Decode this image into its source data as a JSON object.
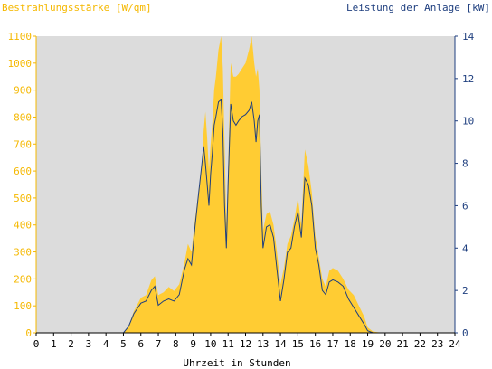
{
  "chart_data": {
    "type": "area",
    "title_left": "Bestrahlungsstärke [W/qm]",
    "title_right": "Leistung der Anlage [kW]",
    "xlabel": "Uhrzeit in Stunden",
    "xlim": [
      0,
      24
    ],
    "x_ticks": [
      "0",
      "1",
      "2",
      "3",
      "4",
      "5",
      "6",
      "7",
      "8",
      "9",
      "10",
      "11",
      "12",
      "13",
      "14",
      "15",
      "16",
      "17",
      "18",
      "19",
      "20",
      "21",
      "22",
      "23",
      "24"
    ],
    "y_left": {
      "range": [
        0,
        1100
      ],
      "ticks": [
        "0",
        "100",
        "200",
        "300",
        "400",
        "500",
        "600",
        "700",
        "800",
        "900",
        "1000",
        "1100"
      ]
    },
    "y_right": {
      "range": [
        0,
        14
      ],
      "ticks": [
        "0",
        "2",
        "4",
        "6",
        "8",
        "10",
        "12",
        "14"
      ]
    },
    "grid": false,
    "colors": {
      "plot_background": "#dcdcdc",
      "irradiance": "#ffcc33",
      "power": "#1f3f7f",
      "left_axis": "#f5b800",
      "right_axis": "#1f3f7f"
    },
    "series": [
      {
        "axis": "left",
        "x": [
          0,
          5.0,
          5.3,
          5.6,
          6.0,
          6.3,
          6.6,
          6.8,
          7.0,
          7.3,
          7.6,
          7.9,
          8.2,
          8.5,
          8.7,
          8.9,
          9.1,
          9.3,
          9.5,
          9.6,
          9.7,
          9.8,
          9.9,
          10.0,
          10.1,
          10.2,
          10.3,
          10.45,
          10.6,
          10.7,
          10.8,
          10.9,
          11.0,
          11.15,
          11.3,
          11.45,
          11.6,
          11.8,
          12.0,
          12.2,
          12.35,
          12.5,
          12.6,
          12.7,
          12.8,
          12.9,
          13.0,
          13.2,
          13.4,
          13.6,
          13.8,
          14.0,
          14.2,
          14.4,
          14.6,
          14.8,
          15.0,
          15.2,
          15.4,
          15.6,
          15.8,
          16.0,
          16.2,
          16.4,
          16.6,
          16.8,
          17.0,
          17.3,
          17.6,
          17.9,
          18.2,
          18.5,
          18.8,
          19.0,
          19.3,
          19.6,
          20.0,
          20.5,
          24
        ],
        "values": [
          0,
          0,
          25,
          80,
          130,
          140,
          195,
          210,
          140,
          150,
          170,
          155,
          180,
          260,
          330,
          300,
          420,
          520,
          620,
          750,
          820,
          720,
          600,
          700,
          780,
          900,
          950,
          1050,
          1100,
          980,
          700,
          400,
          600,
          1000,
          950,
          950,
          960,
          980,
          1000,
          1050,
          1100,
          1000,
          950,
          980,
          900,
          600,
          380,
          440,
          450,
          400,
          300,
          180,
          240,
          330,
          360,
          420,
          500,
          400,
          680,
          620,
          520,
          360,
          280,
          200,
          170,
          230,
          240,
          230,
          200,
          160,
          140,
          100,
          60,
          20,
          5,
          2,
          0,
          0,
          0
        ]
      },
      {
        "axis": "right",
        "x": [
          0,
          5.0,
          5.3,
          5.6,
          6.0,
          6.3,
          6.6,
          6.8,
          7.0,
          7.3,
          7.6,
          7.9,
          8.2,
          8.5,
          8.7,
          8.9,
          9.1,
          9.3,
          9.5,
          9.6,
          9.7,
          9.8,
          9.9,
          10.0,
          10.1,
          10.2,
          10.3,
          10.45,
          10.6,
          10.7,
          10.8,
          10.9,
          11.0,
          11.15,
          11.3,
          11.45,
          11.6,
          11.8,
          12.0,
          12.2,
          12.35,
          12.5,
          12.6,
          12.7,
          12.8,
          12.9,
          13.0,
          13.2,
          13.4,
          13.6,
          13.8,
          14.0,
          14.2,
          14.4,
          14.6,
          14.8,
          15.0,
          15.2,
          15.4,
          15.6,
          15.8,
          16.0,
          16.2,
          16.4,
          16.6,
          16.8,
          17.0,
          17.3,
          17.6,
          17.9,
          18.2,
          18.5,
          18.8,
          19.0,
          19.3,
          19.6,
          20.0,
          20.5,
          24
        ],
        "values": [
          0,
          0,
          0.3,
          0.9,
          1.4,
          1.5,
          2.0,
          2.2,
          1.3,
          1.5,
          1.6,
          1.5,
          1.8,
          3.0,
          3.5,
          3.2,
          5.0,
          6.5,
          8.0,
          8.8,
          8.0,
          7.0,
          6.0,
          7.5,
          8.5,
          9.8,
          10.2,
          10.9,
          11.0,
          9.5,
          6.0,
          4.0,
          7.0,
          10.8,
          10.0,
          9.8,
          10.0,
          10.2,
          10.3,
          10.5,
          10.9,
          10.0,
          9.0,
          10.0,
          10.3,
          6.0,
          4.0,
          5.0,
          5.1,
          4.5,
          3.0,
          1.5,
          2.5,
          3.8,
          4.0,
          5.0,
          5.7,
          4.5,
          7.3,
          7.0,
          6.0,
          4.0,
          3.2,
          2.0,
          1.8,
          2.4,
          2.5,
          2.4,
          2.2,
          1.6,
          1.2,
          0.8,
          0.4,
          0.1,
          0,
          0,
          0,
          0,
          0
        ]
      }
    ]
  }
}
